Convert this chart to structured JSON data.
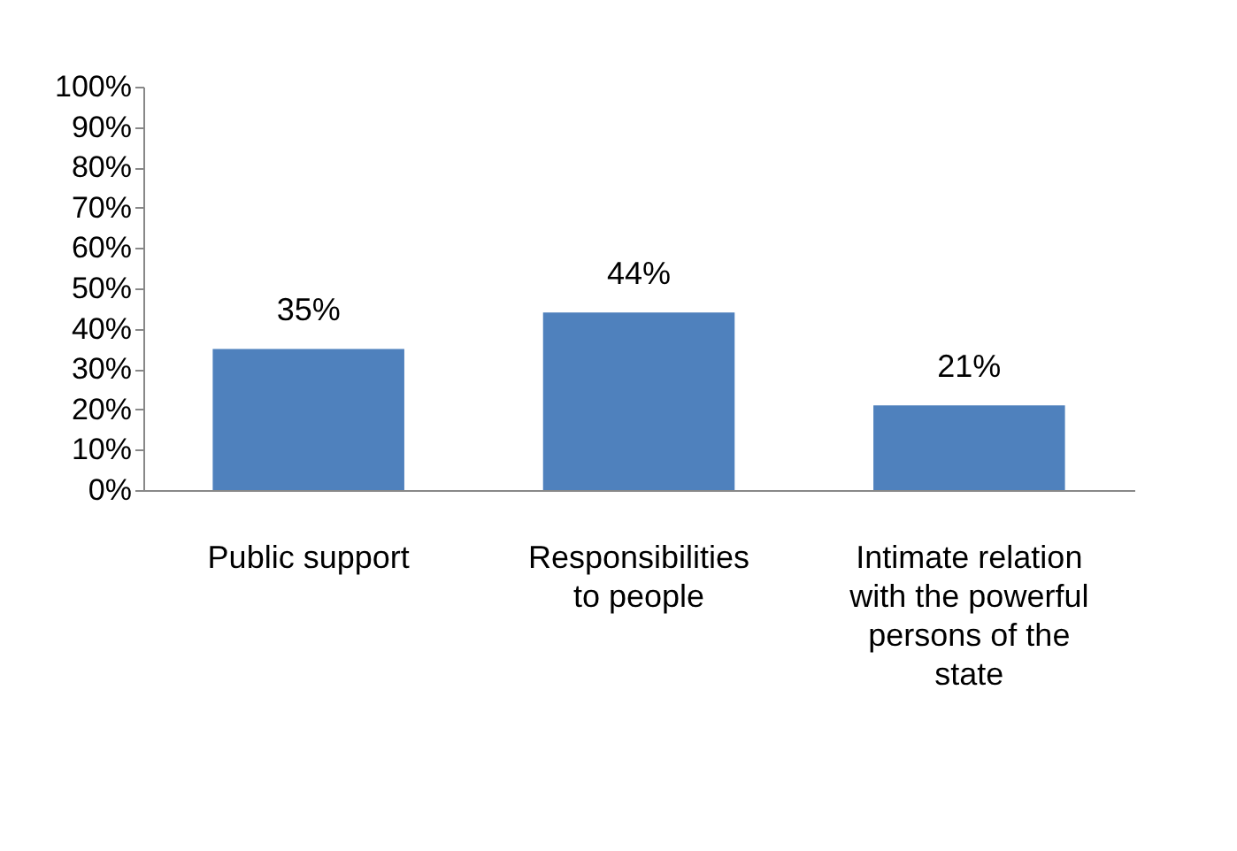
{
  "chart_data": {
    "type": "bar",
    "categories": [
      "Public support",
      "Responsibilities to people",
      "Intimate relation with the powerful persons of the state"
    ],
    "values": [
      35,
      44,
      21
    ],
    "color": "#4f81bd",
    "ylim": [
      0,
      100
    ],
    "yticks": [
      {
        "value": 0,
        "label": "0%"
      },
      {
        "value": 10,
        "label": "10%"
      },
      {
        "value": 20,
        "label": "20%"
      },
      {
        "value": 30,
        "label": "30%"
      },
      {
        "value": 40,
        "label": "40%"
      },
      {
        "value": 50,
        "label": "50%"
      },
      {
        "value": 60,
        "label": "60%"
      },
      {
        "value": 70,
        "label": "70%"
      },
      {
        "value": 80,
        "label": "80%"
      },
      {
        "value": 90,
        "label": "90%"
      },
      {
        "value": 100,
        "label": "100%"
      }
    ],
    "value_labels": [
      "35%",
      "44%",
      "21%"
    ],
    "grid": false
  }
}
